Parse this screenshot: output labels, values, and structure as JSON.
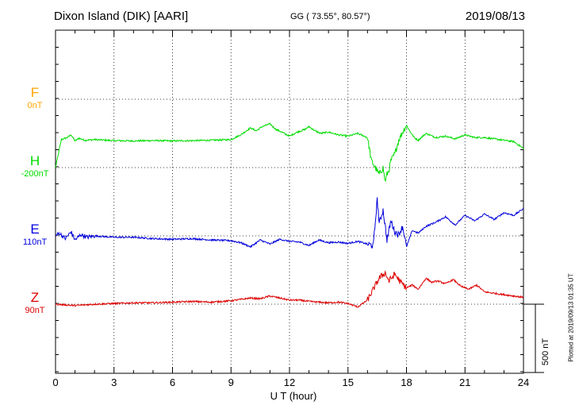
{
  "header": {
    "station": "Dixon Island (DIK)  [AARI]",
    "coords": "GG ( 73.55°,  80.57°)",
    "date": "2019/08/13"
  },
  "channels": [
    {
      "name": "F",
      "baseline": "0nT",
      "color": "#FFA500"
    },
    {
      "name": "H",
      "baseline": "-200nT",
      "color": "#00DD00"
    },
    {
      "name": "E",
      "baseline": "110nT",
      "color": "#0000DD"
    },
    {
      "name": "Z",
      "baseline": "90nT",
      "color": "#DD0000"
    }
  ],
  "scale_bar": {
    "label": "500 nT",
    "value_nT": 500
  },
  "plotted_at": "Plotted at 2019/09/13 01:35 UT",
  "chart_data": {
    "type": "line",
    "title": "Dixon Island (DIK)  [AARI]",
    "xlabel": "U T (hour)",
    "xlim": [
      0,
      24
    ],
    "xticks": [
      "0",
      "3",
      "6",
      "9",
      "12",
      "15",
      "18",
      "21",
      "24"
    ],
    "grid": true,
    "series": [
      {
        "name": "F",
        "baseline_nT": 0,
        "x": [],
        "y": []
      },
      {
        "name": "H",
        "baseline_nT": -200,
        "x": [
          0,
          0.3,
          0.6,
          0.8,
          1.0,
          1.2,
          1.5,
          2.0,
          3.0,
          4.0,
          5.0,
          6.0,
          7.0,
          8.0,
          9.0,
          9.5,
          10.0,
          10.3,
          10.6,
          11.0,
          11.3,
          11.6,
          12.0,
          12.4,
          12.8,
          13.0,
          13.3,
          13.6,
          14.0,
          14.5,
          15.0,
          15.5,
          16.0,
          16.2,
          16.4,
          16.6,
          16.8,
          16.9,
          17.0,
          17.1,
          17.2,
          17.4,
          17.6,
          17.8,
          18.0,
          18.2,
          18.4,
          18.6,
          19.0,
          19.5,
          20.0,
          20.5,
          21.0,
          21.5,
          22.0,
          22.5,
          23.0,
          23.5,
          24.0
        ],
        "y": [
          -200,
          5,
          20,
          40,
          -5,
          15,
          0,
          5,
          -3,
          -5,
          -2,
          -5,
          -3,
          0,
          5,
          40,
          90,
          70,
          100,
          120,
          80,
          60,
          30,
          60,
          80,
          100,
          70,
          50,
          60,
          40,
          30,
          50,
          20,
          -150,
          -200,
          -250,
          -200,
          -300,
          -250,
          -220,
          -150,
          -100,
          0,
          60,
          110,
          60,
          20,
          0,
          50,
          20,
          30,
          10,
          40,
          20,
          20,
          10,
          0,
          -10,
          -60
        ]
      },
      {
        "name": "E",
        "baseline_nT": 110,
        "x": [
          0,
          0.2,
          0.5,
          0.8,
          1.0,
          1.3,
          1.6,
          2.0,
          3.0,
          4.0,
          5.0,
          6.0,
          7.0,
          8.0,
          9.0,
          9.5,
          10.0,
          10.5,
          11.0,
          11.5,
          12.0,
          12.5,
          13.0,
          13.5,
          14.0,
          14.5,
          15.0,
          15.5,
          16.0,
          16.3,
          16.5,
          16.6,
          16.8,
          17.0,
          17.2,
          17.4,
          17.6,
          17.8,
          18.0,
          18.3,
          18.6,
          19.0,
          19.5,
          20.0,
          20.5,
          21.0,
          21.5,
          22.0,
          22.5,
          23.0,
          23.5,
          24.0
        ],
        "y": [
          110,
          130,
          90,
          140,
          80,
          120,
          100,
          110,
          100,
          100,
          90,
          85,
          90,
          80,
          75,
          60,
          30,
          80,
          50,
          85,
          70,
          65,
          40,
          80,
          60,
          65,
          55,
          70,
          50,
          40,
          380,
          200,
          300,
          80,
          220,
          140,
          120,
          180,
          30,
          150,
          130,
          180,
          210,
          250,
          190,
          260,
          220,
          270,
          230,
          280,
          260,
          310
        ]
      },
      {
        "name": "Z",
        "baseline_nT": 90,
        "x": [
          0,
          1,
          2,
          3,
          4,
          5,
          6,
          7,
          8,
          9,
          9.5,
          10.0,
          10.5,
          11.0,
          11.5,
          12.0,
          12.5,
          13.0,
          13.5,
          14.0,
          14.5,
          15.0,
          15.5,
          16.0,
          16.3,
          16.6,
          16.9,
          17.1,
          17.4,
          17.7,
          18.0,
          18.3,
          18.6,
          19.0,
          19.3,
          19.6,
          20.0,
          20.4,
          20.8,
          21.2,
          21.6,
          22.0,
          22.5,
          23.0,
          23.5,
          24.0
        ],
        "y": [
          90,
          80,
          90,
          95,
          100,
          100,
          105,
          110,
          105,
          115,
          125,
          135,
          130,
          150,
          135,
          120,
          120,
          110,
          105,
          100,
          105,
          95,
          70,
          120,
          200,
          280,
          320,
          260,
          310,
          250,
          210,
          230,
          200,
          280,
          250,
          260,
          240,
          270,
          220,
          200,
          230,
          180,
          170,
          160,
          150,
          140
        ]
      }
    ]
  }
}
